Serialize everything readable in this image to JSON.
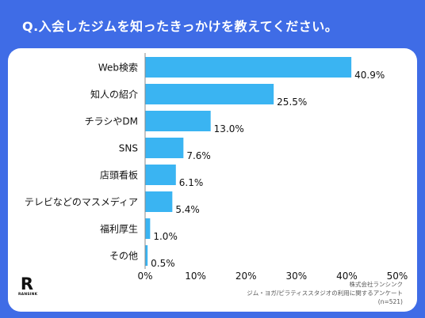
{
  "question": "Q.入会したジムを知ったきっかけを教えてください。",
  "colors": {
    "background": "#3f6ce6",
    "bar": "#3ab4f2",
    "card": "#ffffff"
  },
  "logo": {
    "letter": "R",
    "word": "RANSINK"
  },
  "source": {
    "company": "株式会社ランシンク",
    "survey": "ジム・ヨガ/ピラティススタジオの利用に関するアンケート",
    "n": "(n=521)"
  },
  "chart_data": {
    "type": "bar",
    "orientation": "horizontal",
    "categories": [
      "Web検索",
      "知人の紹介",
      "チラシやDM",
      "SNS",
      "店頭看板",
      "テレビなどのマスメディア",
      "福利厚生",
      "その他"
    ],
    "values": [
      40.9,
      25.5,
      13.0,
      7.6,
      6.1,
      5.4,
      1.0,
      0.5
    ],
    "value_labels": [
      "40.9%",
      "25.5%",
      "13.0%",
      "7.6%",
      "6.1%",
      "5.4%",
      "1.0%",
      "0.5%"
    ],
    "xlim": [
      0,
      50
    ],
    "xticks": [
      0,
      10,
      20,
      30,
      40,
      50
    ],
    "xtick_labels": [
      "0%",
      "10%",
      "20%",
      "30%",
      "40%",
      "50%"
    ],
    "grid": false,
    "legend": "none"
  }
}
